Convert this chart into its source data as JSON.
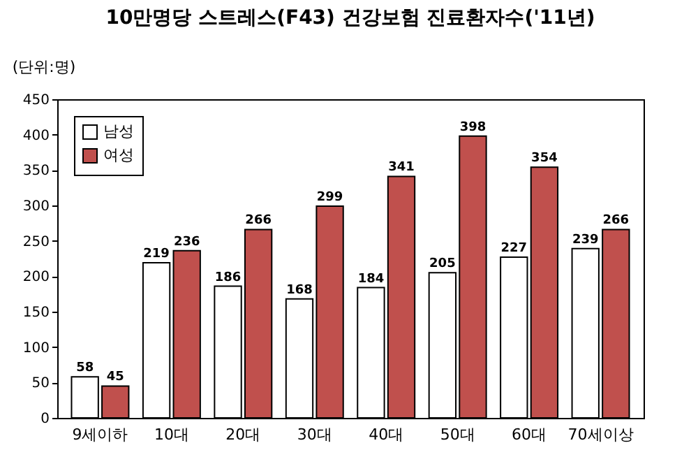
{
  "chart_data": {
    "type": "bar",
    "title": "10만명당 스트레스(F43) 건강보험 진료환자수('11년)",
    "ylabel": "(단위:명)",
    "categories": [
      "9세이하",
      "10대",
      "20대",
      "30대",
      "40대",
      "50대",
      "60대",
      "70세이상"
    ],
    "series": [
      {
        "name": "남성",
        "color": "#ffffff",
        "values": [
          58,
          219,
          186,
          168,
          184,
          205,
          227,
          239
        ]
      },
      {
        "name": "여성",
        "color": "#c0504d",
        "values": [
          45,
          236,
          266,
          299,
          341,
          398,
          354,
          266
        ]
      }
    ],
    "ylim": [
      0,
      450
    ],
    "yticks": [
      0,
      50,
      100,
      150,
      200,
      250,
      300,
      350,
      400,
      450
    ],
    "grid": false,
    "legend": "top left",
    "data_labels": true
  }
}
